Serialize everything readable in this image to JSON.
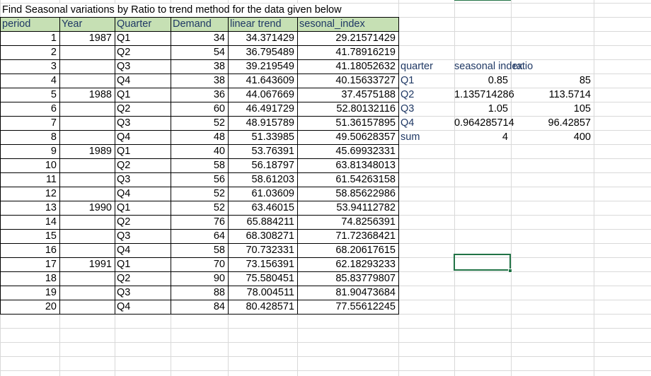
{
  "title": "Find Seasonal variations by Ratio to trend method for the data given below",
  "headers": {
    "period": "period",
    "year": "Year",
    "quarter": "Quarter",
    "demand": "Demand",
    "linear_trend": "linear trend",
    "seasonal_index": "sesonal_index"
  },
  "rows": [
    {
      "period": "1",
      "year": "1987",
      "quarter": "Q1",
      "demand": "34",
      "trend": "34.371429",
      "index": "29.21571429"
    },
    {
      "period": "2",
      "year": "",
      "quarter": "Q2",
      "demand": "54",
      "trend": "36.795489",
      "index": "41.78916219"
    },
    {
      "period": "3",
      "year": "",
      "quarter": "Q3",
      "demand": "38",
      "trend": "39.219549",
      "index": "41.18052632"
    },
    {
      "period": "4",
      "year": "",
      "quarter": "Q4",
      "demand": "38",
      "trend": "41.643609",
      "index": "40.15633727"
    },
    {
      "period": "5",
      "year": "1988",
      "quarter": "Q1",
      "demand": "36",
      "trend": "44.067669",
      "index": "37.4575188"
    },
    {
      "period": "6",
      "year": "",
      "quarter": "Q2",
      "demand": "60",
      "trend": "46.491729",
      "index": "52.80132116"
    },
    {
      "period": "7",
      "year": "",
      "quarter": "Q3",
      "demand": "52",
      "trend": "48.915789",
      "index": "51.36157895"
    },
    {
      "period": "8",
      "year": "",
      "quarter": "Q4",
      "demand": "48",
      "trend": "51.33985",
      "index": "49.50628357"
    },
    {
      "period": "9",
      "year": "1989",
      "quarter": "Q1",
      "demand": "40",
      "trend": "53.76391",
      "index": "45.69932331"
    },
    {
      "period": "10",
      "year": "",
      "quarter": "Q2",
      "demand": "58",
      "trend": "56.18797",
      "index": "63.81348013"
    },
    {
      "period": "11",
      "year": "",
      "quarter": "Q3",
      "demand": "56",
      "trend": "58.61203",
      "index": "61.54263158"
    },
    {
      "period": "12",
      "year": "",
      "quarter": "Q4",
      "demand": "52",
      "trend": "61.03609",
      "index": "58.85622986"
    },
    {
      "period": "13",
      "year": "1990",
      "quarter": "Q1",
      "demand": "52",
      "trend": "63.46015",
      "index": "53.94112782"
    },
    {
      "period": "14",
      "year": "",
      "quarter": "Q2",
      "demand": "76",
      "trend": "65.884211",
      "index": "74.8256391"
    },
    {
      "period": "15",
      "year": "",
      "quarter": "Q3",
      "demand": "64",
      "trend": "68.308271",
      "index": "71.72368421"
    },
    {
      "period": "16",
      "year": "",
      "quarter": "Q4",
      "demand": "58",
      "trend": "70.732331",
      "index": "68.20617615"
    },
    {
      "period": "17",
      "year": "1991",
      "quarter": "Q1",
      "demand": "70",
      "trend": "73.156391",
      "index": "62.18293233"
    },
    {
      "period": "18",
      "year": "",
      "quarter": "Q2",
      "demand": "90",
      "trend": "75.580451",
      "index": "85.83779807"
    },
    {
      "period": "19",
      "year": "",
      "quarter": "Q3",
      "demand": "88",
      "trend": "78.004511",
      "index": "81.90473684"
    },
    {
      "period": "20",
      "year": "",
      "quarter": "Q4",
      "demand": "84",
      "trend": "80.428571",
      "index": "77.55612245"
    }
  ],
  "summary": {
    "headers": {
      "quarter": "quarter",
      "seasonal_index": "seasonal index",
      "ratio": "ratio"
    },
    "rows": [
      {
        "quarter": "Q1",
        "index": "0.85",
        "ratio": "85"
      },
      {
        "quarter": "Q2",
        "index": "1.135714286",
        "ratio": "113.5714"
      },
      {
        "quarter": "Q3",
        "index": "1.05",
        "ratio": "105"
      },
      {
        "quarter": "Q4",
        "index": "0.964285714",
        "ratio": "96.42857"
      },
      {
        "quarter": "sum",
        "index": "4",
        "ratio": "400"
      }
    ]
  },
  "colors": {
    "header_fill": "#c6e0b4",
    "header_text": "#1f3864",
    "summary_text": "#1f3864",
    "gridline": "#d9d9d9",
    "selection": "#217346"
  }
}
